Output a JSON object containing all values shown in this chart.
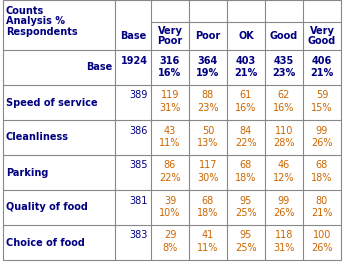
{
  "header_left": "Counts\nAnalysis %\nRespondents",
  "col_headers": [
    "Base",
    "Very\nPoor",
    "Poor",
    "OK",
    "Good",
    "Very\nGood"
  ],
  "row_labels": [
    "Base",
    "Speed of service",
    "Cleanliness",
    "Parking",
    "Quality of food",
    "Choice of food"
  ],
  "base_values": [
    1924,
    389,
    386,
    385,
    381,
    383
  ],
  "data": [
    [
      "316",
      "364",
      "403",
      "435",
      "406"
    ],
    [
      "119",
      "88",
      "61",
      "62",
      "59"
    ],
    [
      "43",
      "50",
      "84",
      "110",
      "99"
    ],
    [
      "86",
      "117",
      "68",
      "46",
      "68"
    ],
    [
      "39",
      "68",
      "95",
      "99",
      "80"
    ],
    [
      "29",
      "41",
      "95",
      "118",
      "100"
    ]
  ],
  "pct": [
    [
      "16%",
      "19%",
      "21%",
      "23%",
      "21%"
    ],
    [
      "31%",
      "23%",
      "16%",
      "16%",
      "15%"
    ],
    [
      "11%",
      "13%",
      "22%",
      "28%",
      "26%"
    ],
    [
      "22%",
      "30%",
      "18%",
      "12%",
      "18%"
    ],
    [
      "10%",
      "18%",
      "25%",
      "26%",
      "21%"
    ],
    [
      "8%",
      "11%",
      "25%",
      "31%",
      "26%"
    ]
  ],
  "count_color_base": "#000080",
  "count_color_data": "#cc6600",
  "pct_color_base": "#000080",
  "pct_color_data": "#cc6600",
  "header_text_color": "#000080",
  "row_label_color": "#000080",
  "base_num_color": "#000080",
  "grid_color": "#888888",
  "bg_color": "#ffffff"
}
